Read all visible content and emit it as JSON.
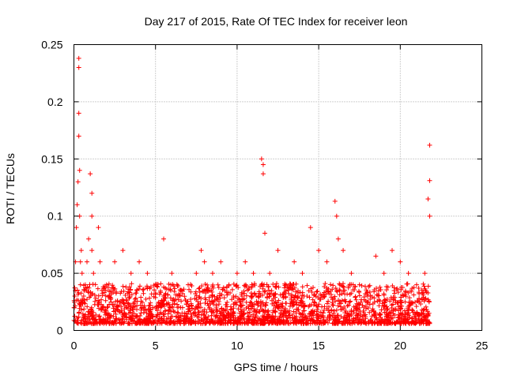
{
  "chart_data": {
    "type": "scatter",
    "title": "Day 217 of 2015, Rate Of TEC Index for receiver leon",
    "xlabel": "GPS time / hours",
    "ylabel": "ROTI / TECUs",
    "xlim": [
      0,
      25
    ],
    "ylim": [
      0,
      0.25
    ],
    "xticks": [
      0,
      5,
      10,
      15,
      20,
      25
    ],
    "yticks": [
      0,
      0.05,
      0.1,
      0.15,
      0.2,
      0.25
    ],
    "xtick_labels": [
      "0",
      "5",
      "10",
      "15",
      "20",
      "25"
    ],
    "ytick_labels": [
      "0",
      "0.05",
      "0.1",
      "0.15",
      "0.2",
      "0.25"
    ],
    "grid": true,
    "marker": "plus",
    "color": "#ff0000",
    "series": [
      {
        "name": "ROTI",
        "x": [
          0.05,
          0.1,
          0.15,
          0.2,
          0.25,
          0.3,
          0.3,
          0.3,
          0.3,
          0.35,
          0.35,
          0.4,
          0.4,
          0.45,
          0.5,
          0.6,
          0.7,
          0.8,
          0.9,
          1.0,
          1.1,
          1.1,
          1.1,
          1.2,
          1.5,
          1.6,
          2.0,
          2.5,
          3.0,
          3.5,
          4.0,
          4.5,
          5.0,
          5.5,
          5.5,
          6.0,
          6.5,
          7.0,
          7.5,
          7.8,
          8.0,
          8.5,
          9.0,
          9.5,
          10.0,
          10.5,
          11.0,
          11.5,
          11.6,
          11.6,
          11.7,
          12.0,
          12.5,
          13.0,
          13.5,
          14.0,
          14.5,
          15.0,
          15.5,
          16.0,
          16.1,
          16.2,
          16.5,
          17.0,
          17.5,
          18.0,
          18.5,
          19.0,
          19.5,
          20.0,
          20.5,
          21.0,
          21.5,
          21.7,
          21.8,
          21.8,
          21.8
        ],
        "y": [
          0.03,
          0.06,
          0.09,
          0.11,
          0.13,
          0.23,
          0.238,
          0.19,
          0.17,
          0.14,
          0.1,
          0.06,
          0.04,
          0.07,
          0.05,
          0.03,
          0.04,
          0.06,
          0.08,
          0.137,
          0.12,
          0.1,
          0.07,
          0.05,
          0.09,
          0.06,
          0.04,
          0.06,
          0.07,
          0.05,
          0.06,
          0.05,
          0.04,
          0.08,
          0.03,
          0.05,
          0.03,
          0.04,
          0.05,
          0.07,
          0.06,
          0.05,
          0.06,
          0.04,
          0.05,
          0.06,
          0.05,
          0.15,
          0.145,
          0.137,
          0.085,
          0.05,
          0.07,
          0.04,
          0.06,
          0.05,
          0.09,
          0.07,
          0.06,
          0.113,
          0.1,
          0.08,
          0.07,
          0.05,
          0.04,
          0.03,
          0.065,
          0.05,
          0.07,
          0.06,
          0.05,
          0.04,
          0.05,
          0.115,
          0.162,
          0.131,
          0.1
        ]
      }
    ]
  }
}
